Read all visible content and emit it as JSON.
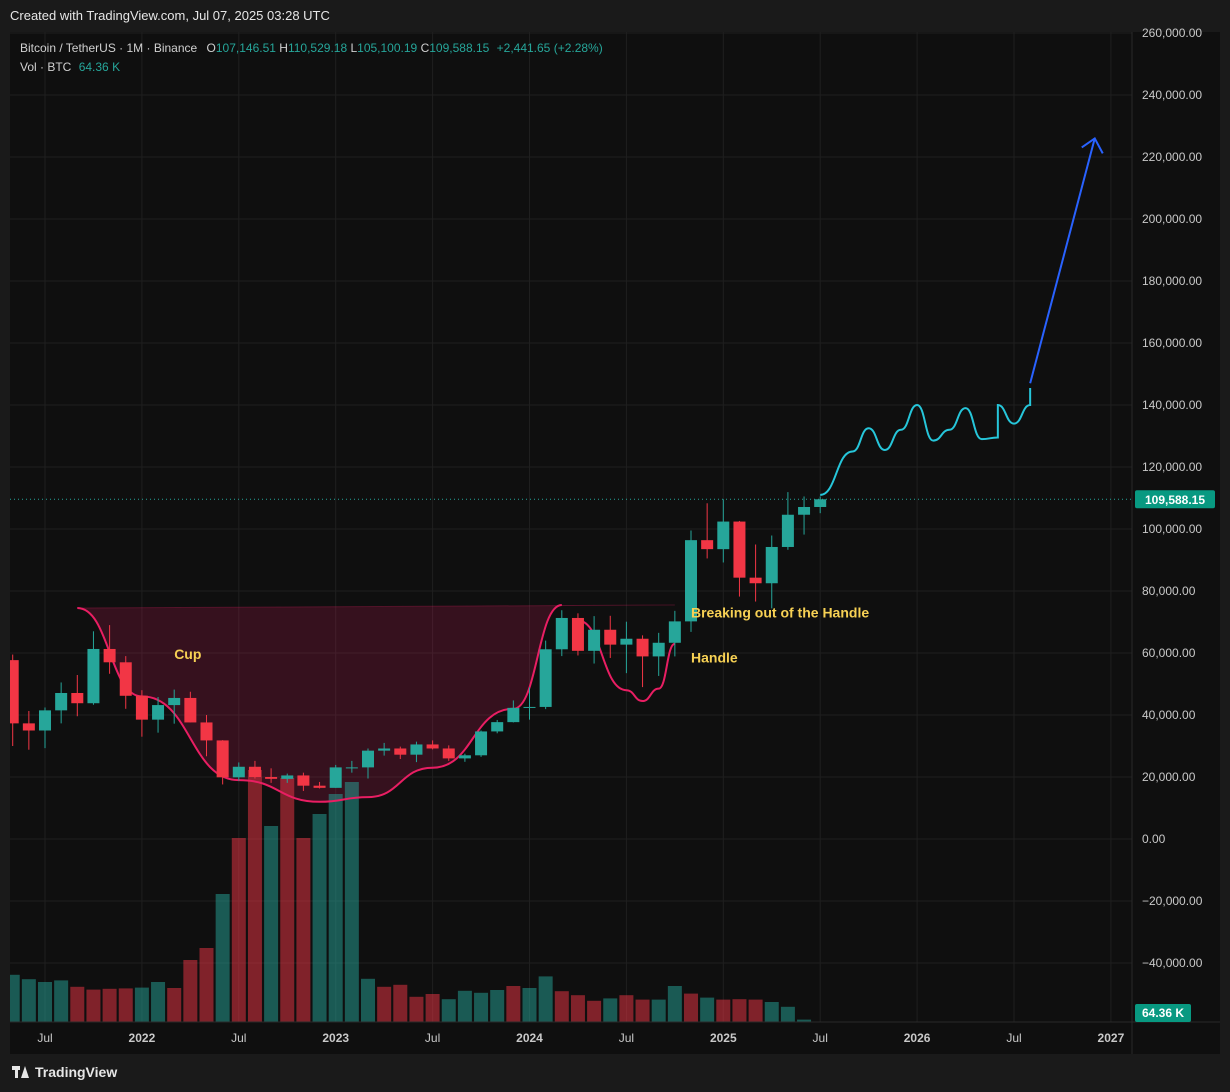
{
  "header": {
    "created_with": "Created with TradingView.com, Jul 07, 2025 03:28 UTC"
  },
  "legend": {
    "symbol": "Bitcoin / TetherUS · 1M · Binance",
    "open_label": "O",
    "open": "107,146.51",
    "high_label": "H",
    "high": "110,529.18",
    "low_label": "L",
    "low": "105,100.19",
    "close_label": "C",
    "close": "109,588.15",
    "change": "+2,441.65 (+2.28%)",
    "vol_label": "Vol · BTC",
    "vol_value": "64.36 K"
  },
  "footer": {
    "brand": "TradingView"
  },
  "colors": {
    "up": "#26a69a",
    "down": "#f23645",
    "pattern": "#e91e63",
    "projection": "#26c6da",
    "arrow": "#2962ff",
    "annotation": "#f7d154"
  },
  "chart_data": {
    "type": "candlestick",
    "symbol": "Bitcoin / TetherUS",
    "interval": "1M",
    "exchange": "Binance",
    "ylim": [
      -58000,
      262000
    ],
    "y_ticks": [
      {
        "value": 260000,
        "label": "260,000.00"
      },
      {
        "value": 240000,
        "label": "240,000.00"
      },
      {
        "value": 220000,
        "label": "220,000.00"
      },
      {
        "value": 200000,
        "label": "200,000.00"
      },
      {
        "value": 180000,
        "label": "180,000.00"
      },
      {
        "value": 160000,
        "label": "160,000.00"
      },
      {
        "value": 140000,
        "label": "140,000.00"
      },
      {
        "value": 120000,
        "label": "120,000.00"
      },
      {
        "value": 100000,
        "label": "100,000.00"
      },
      {
        "value": 80000,
        "label": "80,000.00"
      },
      {
        "value": 60000,
        "label": "60,000.00"
      },
      {
        "value": 40000,
        "label": "40,000.00"
      },
      {
        "value": 20000,
        "label": "20,000.00"
      },
      {
        "value": 0,
        "label": "0.00"
      },
      {
        "value": -20000,
        "label": "−20,000.00"
      },
      {
        "value": -40000,
        "label": "−40,000.00"
      }
    ],
    "x_ticks": [
      {
        "date": "2021-07",
        "label": "Jul",
        "bold": false
      },
      {
        "date": "2022-01",
        "label": "2022",
        "bold": true
      },
      {
        "date": "2022-07",
        "label": "Jul",
        "bold": false
      },
      {
        "date": "2023-01",
        "label": "2023",
        "bold": true
      },
      {
        "date": "2023-07",
        "label": "Jul",
        "bold": false
      },
      {
        "date": "2024-01",
        "label": "2024",
        "bold": true
      },
      {
        "date": "2024-07",
        "label": "Jul",
        "bold": false
      },
      {
        "date": "2025-01",
        "label": "2025",
        "bold": true
      },
      {
        "date": "2025-07",
        "label": "Jul",
        "bold": false
      },
      {
        "date": "2026-01",
        "label": "2026",
        "bold": true
      },
      {
        "date": "2026-07",
        "label": "Jul",
        "bold": false
      },
      {
        "date": "2027-01",
        "label": "2027",
        "bold": true
      }
    ],
    "candles": [
      {
        "date": "2021-05",
        "o": 57700,
        "h": 59500,
        "l": 30000,
        "c": 37300
      },
      {
        "date": "2021-06",
        "o": 37300,
        "h": 41300,
        "l": 28800,
        "c": 35000
      },
      {
        "date": "2021-07",
        "o": 35000,
        "h": 42400,
        "l": 29300,
        "c": 41500
      },
      {
        "date": "2021-08",
        "o": 41500,
        "h": 50500,
        "l": 37300,
        "c": 47100
      },
      {
        "date": "2021-09",
        "o": 47100,
        "h": 52900,
        "l": 39600,
        "c": 43800
      },
      {
        "date": "2021-10",
        "o": 43800,
        "h": 67000,
        "l": 43300,
        "c": 61300
      },
      {
        "date": "2021-11",
        "o": 61300,
        "h": 69000,
        "l": 53300,
        "c": 57000
      },
      {
        "date": "2021-12",
        "o": 57000,
        "h": 59000,
        "l": 42000,
        "c": 46200
      },
      {
        "date": "2022-01",
        "o": 46200,
        "h": 48000,
        "l": 33000,
        "c": 38500
      },
      {
        "date": "2022-02",
        "o": 38500,
        "h": 45800,
        "l": 34300,
        "c": 43200
      },
      {
        "date": "2022-03",
        "o": 43200,
        "h": 48200,
        "l": 37200,
        "c": 45500
      },
      {
        "date": "2022-04",
        "o": 45500,
        "h": 47500,
        "l": 37600,
        "c": 37600
      },
      {
        "date": "2022-05",
        "o": 37600,
        "h": 40000,
        "l": 26700,
        "c": 31800
      },
      {
        "date": "2022-06",
        "o": 31800,
        "h": 31900,
        "l": 17600,
        "c": 19900
      },
      {
        "date": "2022-07",
        "o": 19900,
        "h": 24700,
        "l": 18800,
        "c": 23300
      },
      {
        "date": "2022-08",
        "o": 23300,
        "h": 25200,
        "l": 19500,
        "c": 20000
      },
      {
        "date": "2022-09",
        "o": 20000,
        "h": 22800,
        "l": 18100,
        "c": 19400
      },
      {
        "date": "2022-10",
        "o": 19400,
        "h": 21100,
        "l": 18100,
        "c": 20500
      },
      {
        "date": "2022-11",
        "o": 20500,
        "h": 21400,
        "l": 15500,
        "c": 17200
      },
      {
        "date": "2022-12",
        "o": 17200,
        "h": 18400,
        "l": 16300,
        "c": 16500
      },
      {
        "date": "2023-01",
        "o": 16500,
        "h": 23900,
        "l": 16500,
        "c": 23100
      },
      {
        "date": "2023-02",
        "o": 23100,
        "h": 25200,
        "l": 21400,
        "c": 23100
      },
      {
        "date": "2023-03",
        "o": 23100,
        "h": 29200,
        "l": 19500,
        "c": 28500
      },
      {
        "date": "2023-04",
        "o": 28500,
        "h": 31000,
        "l": 26900,
        "c": 29200
      },
      {
        "date": "2023-05",
        "o": 29200,
        "h": 29800,
        "l": 25800,
        "c": 27200
      },
      {
        "date": "2023-06",
        "o": 27200,
        "h": 31400,
        "l": 24800,
        "c": 30500
      },
      {
        "date": "2023-07",
        "o": 30500,
        "h": 31800,
        "l": 28900,
        "c": 29200
      },
      {
        "date": "2023-08",
        "o": 29200,
        "h": 30200,
        "l": 25200,
        "c": 26000
      },
      {
        "date": "2023-09",
        "o": 26000,
        "h": 27500,
        "l": 24900,
        "c": 27000
      },
      {
        "date": "2023-10",
        "o": 27000,
        "h": 35000,
        "l": 26500,
        "c": 34700
      },
      {
        "date": "2023-11",
        "o": 34700,
        "h": 38400,
        "l": 34100,
        "c": 37700
      },
      {
        "date": "2023-12",
        "o": 37700,
        "h": 44700,
        "l": 37600,
        "c": 42300
      },
      {
        "date": "2024-01",
        "o": 42300,
        "h": 48900,
        "l": 38500,
        "c": 42600
      },
      {
        "date": "2024-02",
        "o": 42600,
        "h": 64000,
        "l": 41900,
        "c": 61200
      },
      {
        "date": "2024-03",
        "o": 61200,
        "h": 73800,
        "l": 59000,
        "c": 71300
      },
      {
        "date": "2024-04",
        "o": 71300,
        "h": 72800,
        "l": 59200,
        "c": 60700
      },
      {
        "date": "2024-05",
        "o": 60700,
        "h": 71900,
        "l": 56600,
        "c": 67500
      },
      {
        "date": "2024-06",
        "o": 67500,
        "h": 72000,
        "l": 58400,
        "c": 62700
      },
      {
        "date": "2024-07",
        "o": 62700,
        "h": 70100,
        "l": 53500,
        "c": 64600
      },
      {
        "date": "2024-08",
        "o": 64600,
        "h": 65700,
        "l": 49000,
        "c": 58900
      },
      {
        "date": "2024-09",
        "o": 58900,
        "h": 66500,
        "l": 52600,
        "c": 63300
      },
      {
        "date": "2024-10",
        "o": 63300,
        "h": 73600,
        "l": 58900,
        "c": 70200
      },
      {
        "date": "2024-11",
        "o": 70200,
        "h": 99500,
        "l": 66800,
        "c": 96400
      },
      {
        "date": "2024-12",
        "o": 96400,
        "h": 108300,
        "l": 90500,
        "c": 93500
      },
      {
        "date": "2025-01",
        "o": 93500,
        "h": 109600,
        "l": 89200,
        "c": 102400
      },
      {
        "date": "2025-02",
        "o": 102400,
        "h": 102600,
        "l": 78200,
        "c": 84300
      },
      {
        "date": "2025-03",
        "o": 84300,
        "h": 95000,
        "l": 76600,
        "c": 82500
      },
      {
        "date": "2025-04",
        "o": 82500,
        "h": 97900,
        "l": 74400,
        "c": 94200
      },
      {
        "date": "2025-05",
        "o": 94200,
        "h": 111900,
        "l": 93300,
        "c": 104600
      },
      {
        "date": "2025-06",
        "o": 104600,
        "h": 110500,
        "l": 98200,
        "c": 107100
      },
      {
        "date": "2025-07",
        "o": 107100,
        "h": 110500,
        "l": 105100,
        "c": 109588
      }
    ],
    "volume": [
      {
        "date": "2021-03",
        "v": 2350,
        "up": false
      },
      {
        "date": "2021-04",
        "v": 1950,
        "up": false
      },
      {
        "date": "2021-05",
        "v": 1180,
        "up": true
      },
      {
        "date": "2021-06",
        "v": 1070,
        "up": true
      },
      {
        "date": "2021-07",
        "v": 1000,
        "up": true
      },
      {
        "date": "2021-08",
        "v": 1040,
        "up": true
      },
      {
        "date": "2021-09",
        "v": 880,
        "up": false
      },
      {
        "date": "2021-10",
        "v": 810,
        "up": false
      },
      {
        "date": "2021-11",
        "v": 830,
        "up": false
      },
      {
        "date": "2021-12",
        "v": 840,
        "up": false
      },
      {
        "date": "2022-01",
        "v": 860,
        "up": true
      },
      {
        "date": "2022-02",
        "v": 1000,
        "up": true
      },
      {
        "date": "2022-03",
        "v": 850,
        "up": false
      },
      {
        "date": "2022-04",
        "v": 1550,
        "up": false
      },
      {
        "date": "2022-05",
        "v": 1850,
        "up": false
      },
      {
        "date": "2022-06",
        "v": 3200,
        "up": true
      },
      {
        "date": "2022-07",
        "v": 4600,
        "up": false
      },
      {
        "date": "2022-08",
        "v": 6300,
        "up": false
      },
      {
        "date": "2022-09",
        "v": 4900,
        "up": true
      },
      {
        "date": "2022-10",
        "v": 6100,
        "up": false
      },
      {
        "date": "2022-11",
        "v": 4600,
        "up": false
      },
      {
        "date": "2022-12",
        "v": 5200,
        "up": true
      },
      {
        "date": "2023-01",
        "v": 5700,
        "up": true
      },
      {
        "date": "2023-02",
        "v": 6000,
        "up": true
      },
      {
        "date": "2023-03",
        "v": 1080,
        "up": true
      },
      {
        "date": "2023-04",
        "v": 880,
        "up": false
      },
      {
        "date": "2023-05",
        "v": 930,
        "up": false
      },
      {
        "date": "2023-06",
        "v": 630,
        "up": false
      },
      {
        "date": "2023-07",
        "v": 700,
        "up": false
      },
      {
        "date": "2023-08",
        "v": 570,
        "up": true
      },
      {
        "date": "2023-09",
        "v": 780,
        "up": true
      },
      {
        "date": "2023-10",
        "v": 730,
        "up": true
      },
      {
        "date": "2023-11",
        "v": 800,
        "up": true
      },
      {
        "date": "2023-12",
        "v": 900,
        "up": false
      },
      {
        "date": "2024-01",
        "v": 850,
        "up": true
      },
      {
        "date": "2024-02",
        "v": 1140,
        "up": true
      },
      {
        "date": "2024-03",
        "v": 770,
        "up": false
      },
      {
        "date": "2024-04",
        "v": 670,
        "up": false
      },
      {
        "date": "2024-05",
        "v": 530,
        "up": false
      },
      {
        "date": "2024-06",
        "v": 590,
        "up": true
      },
      {
        "date": "2024-07",
        "v": 670,
        "up": false
      },
      {
        "date": "2024-08",
        "v": 560,
        "up": false
      },
      {
        "date": "2024-09",
        "v": 560,
        "up": true
      },
      {
        "date": "2024-10",
        "v": 900,
        "up": true
      },
      {
        "date": "2024-11",
        "v": 710,
        "up": false
      },
      {
        "date": "2024-12",
        "v": 610,
        "up": true
      },
      {
        "date": "2025-01",
        "v": 560,
        "up": false
      },
      {
        "date": "2025-02",
        "v": 570,
        "up": false
      },
      {
        "date": "2025-03",
        "v": 560,
        "up": false
      },
      {
        "date": "2025-04",
        "v": 500,
        "up": true
      },
      {
        "date": "2025-05",
        "v": 380,
        "up": true
      },
      {
        "date": "2025-06",
        "v": 60,
        "up": true
      }
    ],
    "last_price": {
      "value": 109588.15,
      "label": "109,588.15"
    },
    "last_volume_label": "64.36 K",
    "annotations": [
      {
        "text": "Cup",
        "date": "2022-03",
        "price": 58000
      },
      {
        "text": "Handle",
        "date": "2024-11",
        "price": 57000
      },
      {
        "text": "Breaking out of the Handle",
        "date": "2024-11",
        "price": 71500
      }
    ],
    "cup_rim": {
      "start": {
        "date": "2021-09",
        "price": 74500
      },
      "end": {
        "date": "2024-10",
        "price": 75500
      }
    },
    "cup_curve": [
      {
        "date": "2021-09",
        "price": 74500
      },
      {
        "date": "2022-01",
        "price": 46000
      },
      {
        "date": "2022-07",
        "price": 19000
      },
      {
        "date": "2022-12",
        "price": 12000
      },
      {
        "date": "2023-03",
        "price": 13500
      },
      {
        "date": "2023-07",
        "price": 23000
      },
      {
        "date": "2023-12",
        "price": 42000
      },
      {
        "date": "2024-03",
        "price": 75500
      }
    ],
    "handle_curve": [
      {
        "date": "2024-04",
        "price": 70500
      },
      {
        "date": "2024-07",
        "price": 48000
      },
      {
        "date": "2024-08",
        "price": 44500
      },
      {
        "date": "2024-09",
        "price": 48500
      },
      {
        "date": "2024-10",
        "price": 63000
      }
    ],
    "projection_path": [
      {
        "date": "2025-07",
        "price": 111000
      },
      {
        "date": "2025-09",
        "price": 125000
      },
      {
        "date": "2025-10",
        "price": 132500
      },
      {
        "date": "2025-11",
        "price": 125500
      },
      {
        "date": "2025-12",
        "price": 132000
      },
      {
        "date": "2026-01",
        "price": 140000
      },
      {
        "date": "2026-02",
        "price": 128500
      },
      {
        "date": "2026-03",
        "price": 132000
      },
      {
        "date": "2026-04",
        "price": 139000
      },
      {
        "date": "2026-05",
        "price": 129000
      },
      {
        "date": "2026-06",
        "price": 129500
      },
      {
        "date": "2026-06",
        "price": 140000
      },
      {
        "date": "2026-07",
        "price": 134000
      },
      {
        "date": "2026-08",
        "price": 140000
      },
      {
        "date": "2026-08",
        "price": 145500
      }
    ],
    "projection_arrow": {
      "from": {
        "date": "2026-08",
        "price": 147000
      },
      "to": {
        "date": "2026-12",
        "price": 226000
      }
    }
  }
}
